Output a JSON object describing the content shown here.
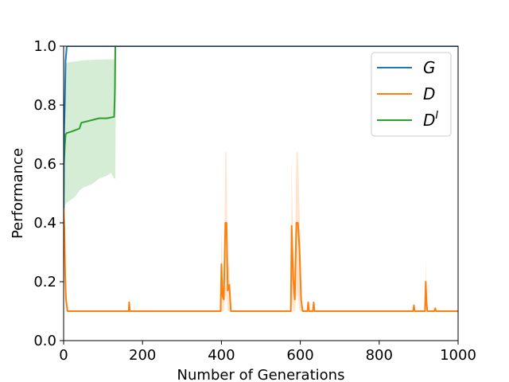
{
  "chart_data": {
    "type": "line",
    "title": "",
    "xlabel": "Number of Generations",
    "ylabel": "Performance",
    "xlim": [
      0,
      1000
    ],
    "ylim": [
      0.0,
      1.0
    ],
    "xticks": [
      0,
      200,
      400,
      600,
      800,
      1000
    ],
    "yticks": [
      0.0,
      0.2,
      0.4,
      0.6,
      0.8,
      1.0
    ],
    "xtick_labels": [
      "0",
      "200",
      "400",
      "600",
      "800",
      "1000"
    ],
    "ytick_labels": [
      "0.0",
      "0.2",
      "0.4",
      "0.6",
      "0.8",
      "1.0"
    ],
    "grid": false,
    "legend_position": "top-right",
    "series": [
      {
        "name": "G",
        "legend_label": "G",
        "color": "#1f77b4",
        "x": [
          0,
          1,
          3,
          5,
          8,
          1000
        ],
        "y": [
          0.45,
          0.7,
          0.8,
          0.95,
          1.0,
          1.0
        ]
      },
      {
        "name": "D",
        "legend_label": "D",
        "color": "#ff7f0e",
        "x": [
          0,
          2,
          4,
          6,
          8,
          10,
          165,
          166,
          168,
          170,
          398,
          400,
          403,
          406,
          410,
          413,
          416,
          420,
          424,
          428,
          576,
          578,
          582,
          586,
          590,
          594,
          598,
          602,
          606,
          618,
          620,
          622,
          632,
          634,
          636,
          886,
          888,
          890,
          916,
          918,
          920,
          922,
          940,
          942,
          944,
          1000
        ],
        "y": [
          0.45,
          0.38,
          0.22,
          0.14,
          0.12,
          0.1,
          0.1,
          0.13,
          0.1,
          0.1,
          0.1,
          0.26,
          0.15,
          0.14,
          0.4,
          0.4,
          0.17,
          0.19,
          0.1,
          0.1,
          0.1,
          0.39,
          0.21,
          0.14,
          0.4,
          0.4,
          0.31,
          0.14,
          0.1,
          0.1,
          0.13,
          0.1,
          0.1,
          0.13,
          0.1,
          0.1,
          0.12,
          0.1,
          0.1,
          0.2,
          0.13,
          0.1,
          0.1,
          0.11,
          0.1,
          0.1
        ],
        "band": {
          "x": [
            0,
            2,
            4,
            6,
            8,
            10,
            165,
            166,
            168,
            170,
            398,
            400,
            403,
            406,
            410,
            413,
            416,
            420,
            424,
            428,
            576,
            578,
            582,
            586,
            590,
            594,
            598,
            602,
            606,
            916,
            918,
            920,
            922,
            1000
          ],
          "lower": [
            0.3,
            0.3,
            0.15,
            0.1,
            0.1,
            0.1,
            0.1,
            0.1,
            0.1,
            0.1,
            0.1,
            0.1,
            0.1,
            0.1,
            0.15,
            0.15,
            0.1,
            0.1,
            0.1,
            0.1,
            0.1,
            0.15,
            0.1,
            0.1,
            0.15,
            0.15,
            0.1,
            0.1,
            0.1,
            0.1,
            0.1,
            0.1,
            0.1,
            0.1
          ],
          "upper": [
            0.6,
            0.5,
            0.3,
            0.2,
            0.15,
            0.1,
            0.1,
            0.16,
            0.1,
            0.1,
            0.1,
            0.39,
            0.2,
            0.18,
            0.64,
            0.64,
            0.24,
            0.27,
            0.1,
            0.1,
            0.1,
            0.63,
            0.3,
            0.2,
            0.64,
            0.64,
            0.45,
            0.2,
            0.1,
            0.1,
            0.28,
            0.15,
            0.1,
            0.1
          ]
        }
      },
      {
        "name": "D^I",
        "legend_label": "D",
        "legend_superscript": "I",
        "color": "#2ca02c",
        "x": [
          0,
          1,
          3,
          5,
          8,
          20,
          30,
          40,
          45,
          60,
          75,
          90,
          110,
          128,
          129,
          130,
          131,
          133,
          1000
        ],
        "y": [
          0.43,
          0.6,
          0.66,
          0.7,
          0.705,
          0.71,
          0.715,
          0.72,
          0.74,
          0.745,
          0.75,
          0.755,
          0.755,
          0.76,
          0.8,
          0.85,
          1.0,
          1.0,
          1.0
        ],
        "band": {
          "x": [
            0,
            2,
            4,
            6,
            10,
            20,
            30,
            40,
            50,
            70,
            90,
            110,
            120,
            128,
            131,
            133,
            1000
          ],
          "lower": [
            0.4,
            0.43,
            0.46,
            0.465,
            0.47,
            0.48,
            0.49,
            0.51,
            0.52,
            0.53,
            0.55,
            0.56,
            0.57,
            0.55,
            0.55,
            1.0,
            1.0
          ],
          "upper": [
            0.6,
            0.8,
            0.92,
            0.94,
            0.945,
            0.947,
            0.948,
            0.95,
            0.952,
            0.953,
            0.954,
            0.955,
            0.955,
            0.955,
            0.955,
            1.0,
            1.0
          ]
        }
      }
    ]
  }
}
